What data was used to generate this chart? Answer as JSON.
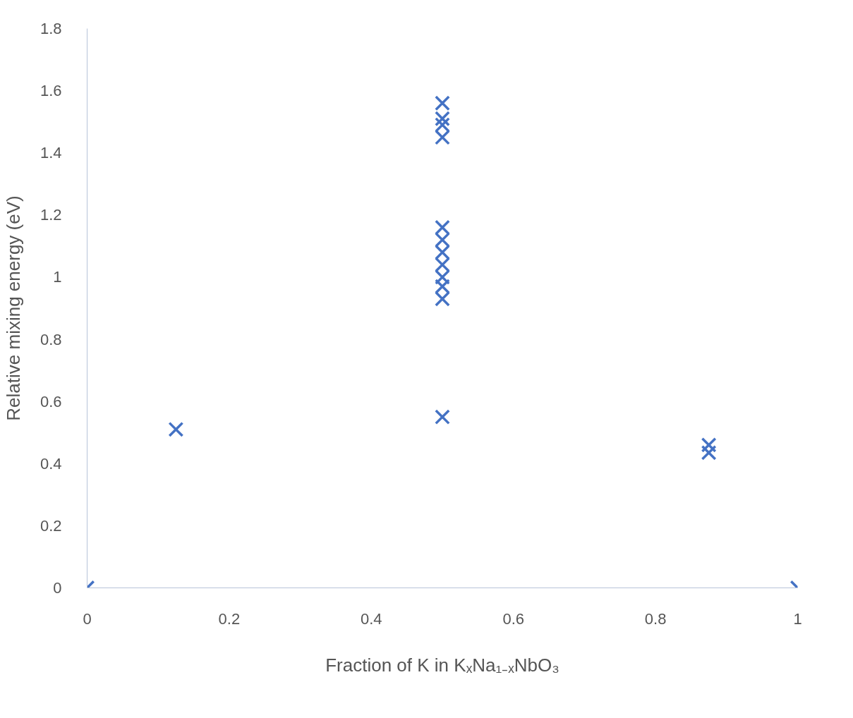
{
  "chart_data": {
    "type": "scatter",
    "xlabel": "Fraction of K in KₓNa₁₋ₓNbO₃",
    "ylabel": "Relative mixing energy (eV)",
    "x": [
      0,
      0.125,
      0.5,
      0.5,
      0.5,
      0.5,
      0.5,
      0.5,
      0.5,
      0.5,
      0.5,
      0.5,
      0.5,
      0.5,
      0.875,
      0.875,
      1
    ],
    "series": [
      {
        "color": "#4472c4",
        "values": [
          0,
          0.51,
          0.55,
          0.93,
          0.97,
          1.0,
          1.04,
          1.08,
          1.12,
          1.16,
          1.45,
          1.49,
          1.51,
          1.56,
          0.435,
          0.46,
          0
        ]
      }
    ],
    "xlim": [
      0,
      1
    ],
    "xticks": [
      0,
      0.2,
      0.4,
      0.6,
      0.8,
      1
    ],
    "ylim": [
      0,
      1.8
    ],
    "yticks": [
      0,
      0.2,
      0.4,
      0.6,
      0.8,
      1,
      1.2,
      1.4,
      1.6,
      1.8
    ],
    "grid": false,
    "marker": "cross"
  }
}
